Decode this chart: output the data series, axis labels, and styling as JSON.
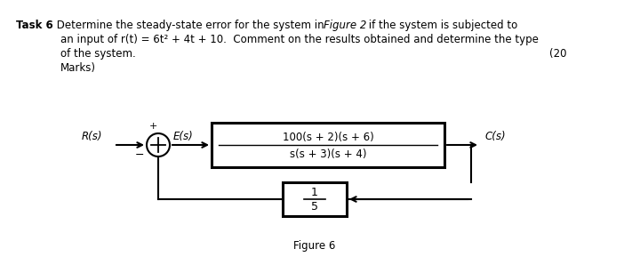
{
  "bg_color": "#ffffff",
  "text_color": "#000000",
  "figure_label": "Figure 6",
  "R_label": "R(s)",
  "E_label": "E(s)",
  "C_label": "C(s)",
  "forward_num": "100(s + 2)(s + 6)",
  "forward_den": "s(s + 3)(s + 4)",
  "line1_bold": "Task 6",
  "line1_rest": " Determine the steady-state error for the system in ",
  "line1_italic": "Figure 2",
  "line1_end": " if the system is subjected to",
  "line2": "an input of r(t) = 6t² + 4t + 10.  Comment on the results obtained and determine the type",
  "line3_left": "of the system.",
  "line3_right": "(20",
  "line4": "Marks)"
}
